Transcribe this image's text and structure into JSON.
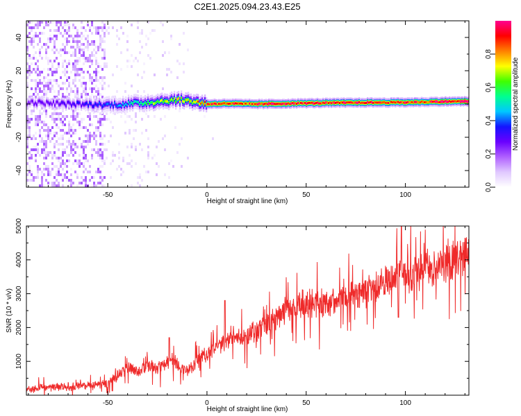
{
  "figure": {
    "title": "C2E1.2025.094.23.43.E25"
  },
  "chart_data": [
    {
      "type": "heatmap",
      "xlabel": "Height of straight line (km)",
      "ylabel": "Frequency (Hz)",
      "xlim": [
        -91,
        132
      ],
      "ylim": [
        -50,
        50
      ],
      "xticks": [
        -50,
        0,
        50,
        100
      ],
      "yticks": [
        -40,
        -20,
        0,
        20,
        40
      ],
      "colorbar": {
        "label": "Normalized spectral amplitude",
        "range": [
          0,
          1
        ],
        "ticks": [
          0.0,
          0.2,
          0.4,
          0.6,
          0.8
        ],
        "tick_labels": [
          "0.0",
          "0.2",
          "0.4",
          "0.6",
          "0.8"
        ],
        "colormap": [
          "#ffffff",
          "#e0c8ff",
          "#b060ff",
          "#6a00ff",
          "#1414ff",
          "#00c8ff",
          "#00ff90",
          "#40ff00",
          "#ffff00",
          "#ff8000",
          "#ff0000",
          "#ff0090"
        ]
      },
      "ridge": {
        "x": [
          -91,
          -70,
          -50,
          -40,
          -30,
          -20,
          -15,
          -10,
          0,
          10,
          20,
          30,
          50,
          75,
          100,
          110,
          120,
          132
        ],
        "center_hz": [
          1,
          0,
          -0.5,
          0,
          1,
          2,
          2.5,
          2,
          0,
          0.3,
          0,
          0,
          0.5,
          0.8,
          1,
          1.2,
          1.5,
          1.6
        ],
        "peak_amplitude": [
          0.25,
          0.3,
          0.38,
          0.5,
          0.62,
          0.7,
          0.72,
          0.7,
          0.9,
          0.9,
          0.85,
          0.95,
          0.92,
          0.93,
          0.9,
          0.88,
          0.95,
          0.97
        ]
      },
      "noise_region": {
        "x_range": [
          -91,
          -10
        ],
        "freq_range": [
          -50,
          50
        ],
        "peak_amplitude": 0.15
      }
    },
    {
      "type": "line",
      "xlabel": "Height of straight line (km)",
      "ylabel": "SNR (10 * v/v)",
      "xlim": [
        -91,
        132
      ],
      "ylim": [
        0,
        5000
      ],
      "xticks": [
        -50,
        0,
        50,
        100
      ],
      "yticks": [
        1000,
        2000,
        3000,
        4000,
        5000
      ],
      "color": "#ef2a2a",
      "series": [
        {
          "x": [
            -91,
            -80,
            -70,
            -60,
            -50,
            -45,
            -40,
            -35,
            -30,
            -25,
            -20,
            -15,
            -10,
            -5,
            0,
            5,
            10,
            15,
            20,
            25,
            30,
            35,
            40,
            50,
            60,
            70,
            80,
            90,
            95,
            97,
            100,
            105,
            110,
            115,
            120,
            125,
            130,
            132
          ],
          "y": [
            180,
            220,
            260,
            280,
            320,
            600,
            800,
            700,
            900,
            800,
            1000,
            900,
            700,
            1000,
            1250,
            1400,
            1600,
            1700,
            1800,
            1900,
            2050,
            2300,
            2550,
            2700,
            2720,
            2900,
            3050,
            3300,
            3500,
            3700,
            3550,
            3600,
            3750,
            3800,
            3900,
            4050,
            4200,
            4300
          ],
          "spikes": [
            {
              "x": -19,
              "y": 1700
            },
            {
              "x": 9,
              "y": 2800
            },
            {
              "x": 96.5,
              "y": 2300
            },
            {
              "x": 98,
              "y": 5100
            },
            {
              "x": 132,
              "y": 4600
            }
          ]
        }
      ]
    }
  ]
}
